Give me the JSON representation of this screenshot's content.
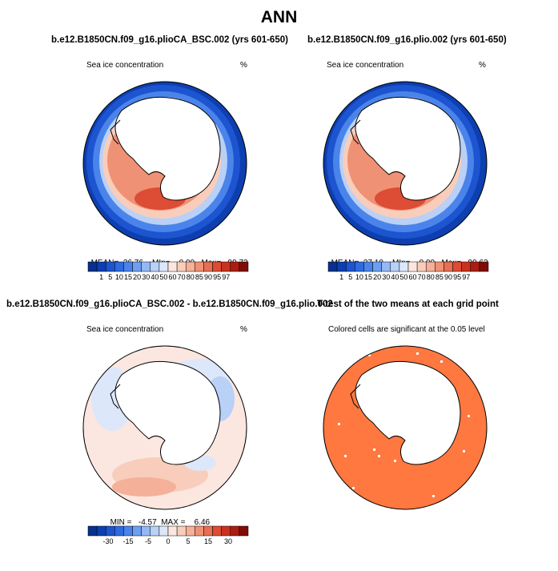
{
  "header": {
    "title": "ANN"
  },
  "colors": {
    "main_levels": [
      "#08308c",
      "#0d3fb0",
      "#1d54d0",
      "#2f6be0",
      "#4a84ea",
      "#6e9ef0",
      "#93b8f4",
      "#b9d0f7",
      "#dde7fa",
      "#fbe7df",
      "#f8cdbb",
      "#f4b098",
      "#ef9174",
      "#e86f52",
      "#dd4c35",
      "#c9321f",
      "#ab1d12",
      "#7f0d06"
    ],
    "diff_levels": [
      "#08308c",
      "#0d3fb0",
      "#1d54d0",
      "#2f6be0",
      "#4a84ea",
      "#6e9ef0",
      "#93b8f4",
      "#b9d0f7",
      "#dde7fa",
      "#fbe7df",
      "#f8cdbb",
      "#f4b098",
      "#ef9174",
      "#e86f52",
      "#dd4c35",
      "#c9321f",
      "#ab1d12",
      "#7f0d06"
    ],
    "significant": "#ff7840",
    "land": "#ffffff"
  },
  "chart_data": [
    {
      "type": "heatmap",
      "title": "b.e12.B1850CN.f09_g16.plioCA_BSC.002 (yrs 601-650)",
      "left_label": "Sea ice concentration",
      "right_label": "%",
      "stats": {
        "mean_label": "MEAN=",
        "mean": "36.76",
        "min_label": "MIn=",
        "min": "0.00",
        "max_label": "Max=",
        "max": "99.72"
      },
      "colorbar_ticks": [
        "1",
        "5",
        "10",
        "15",
        "20",
        "30",
        "40",
        "50",
        "60",
        "70",
        "80",
        "85",
        "90",
        "95",
        "97"
      ]
    },
    {
      "type": "heatmap",
      "title": "b.e12.B1850CN.f09_g16.plio.002 (yrs 601-650)",
      "left_label": "Sea ice concentration",
      "right_label": "%",
      "stats": {
        "mean_label": "MEAN=",
        "mean": "37.10",
        "min_label": "MIn=",
        "min": "0.00",
        "max_label": "Max=",
        "max": "99.63"
      },
      "colorbar_ticks": [
        "1",
        "5",
        "10",
        "15",
        "20",
        "30",
        "40",
        "50",
        "60",
        "70",
        "80",
        "85",
        "90",
        "95",
        "97"
      ]
    },
    {
      "type": "heatmap",
      "title": "b.e12.B1850CN.f09_g16.plioCA_BSC.002 - b.e12.B1850CN.f09_g16.plio.002",
      "left_label": "Sea ice concentration",
      "right_label": "%",
      "stats": {
        "min_label": "MIN =",
        "min": "-4.57",
        "max_label": "MAX =",
        "max": "6.46"
      },
      "colorbar_ticks": [
        "-30",
        "-15",
        "-5",
        "0",
        "5",
        "15",
        "30"
      ]
    },
    {
      "type": "heatmap",
      "title": "T-test of the two means at each grid point",
      "subtitle": "Colored cells are significant at the 0.05 level"
    }
  ]
}
